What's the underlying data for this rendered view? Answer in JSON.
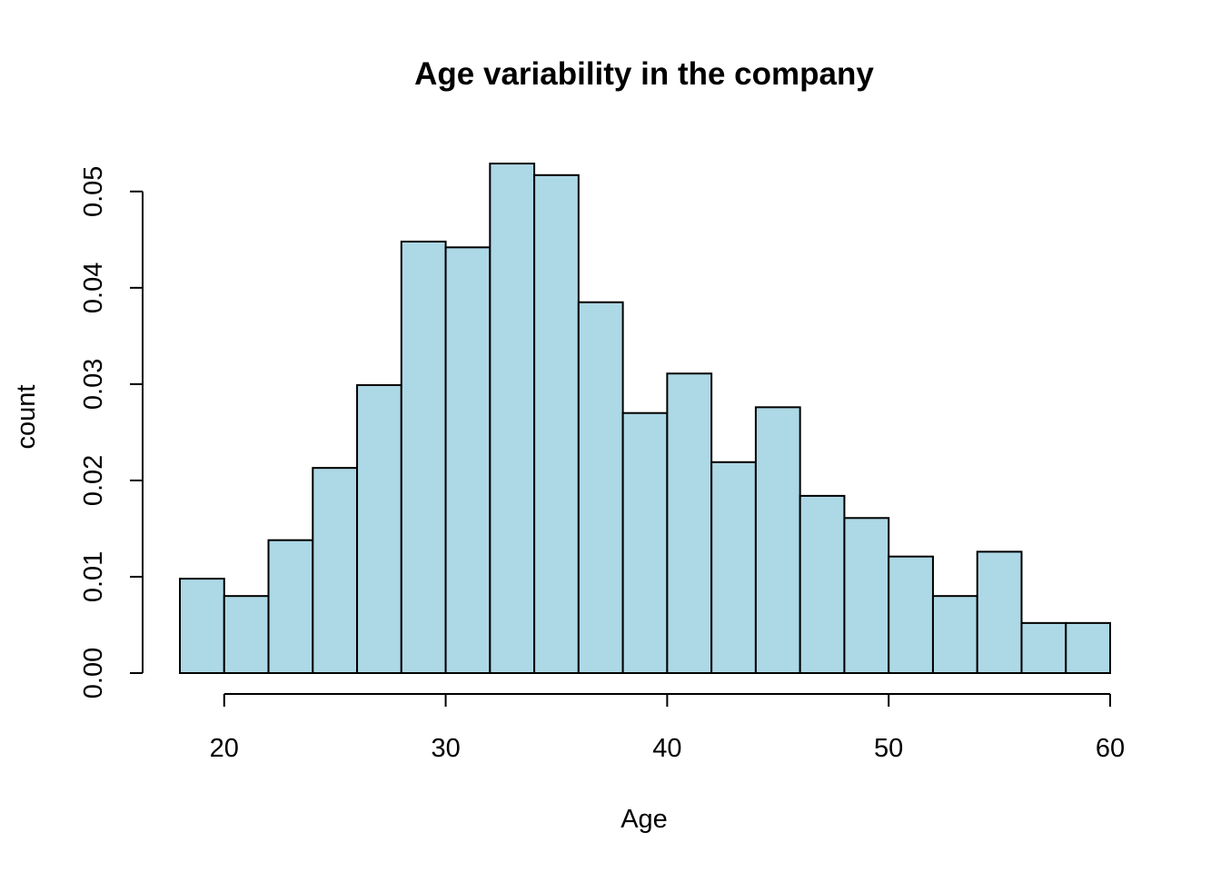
{
  "chart_data": {
    "type": "bar",
    "title": "Age variability in the company",
    "xlabel": "Age",
    "ylabel": "count",
    "bin_edges": [
      18,
      20,
      22,
      24,
      26,
      28,
      30,
      32,
      34,
      36,
      38,
      40,
      42,
      44,
      46,
      48,
      50,
      52,
      54,
      56,
      58,
      60
    ],
    "values": [
      0.0098,
      0.008,
      0.0138,
      0.0213,
      0.0299,
      0.0448,
      0.0442,
      0.0529,
      0.0517,
      0.0385,
      0.027,
      0.0311,
      0.0219,
      0.0276,
      0.0184,
      0.0161,
      0.0121,
      0.008,
      0.0126,
      0.0052,
      0.0052
    ],
    "xlim": [
      18,
      60
    ],
    "ylim": [
      0,
      0.053
    ],
    "x_ticks": [
      20,
      30,
      40,
      50,
      60
    ],
    "x_tick_labels": [
      "20",
      "30",
      "40",
      "50",
      "60"
    ],
    "y_ticks": [
      0,
      0.01,
      0.02,
      0.03,
      0.04,
      0.05
    ],
    "y_tick_labels": [
      "0.00",
      "0.01",
      "0.02",
      "0.03",
      "0.04",
      "0.05"
    ],
    "bar_fill": "#add8e6",
    "bar_border": "#000000",
    "grid": false,
    "legend": "none"
  }
}
